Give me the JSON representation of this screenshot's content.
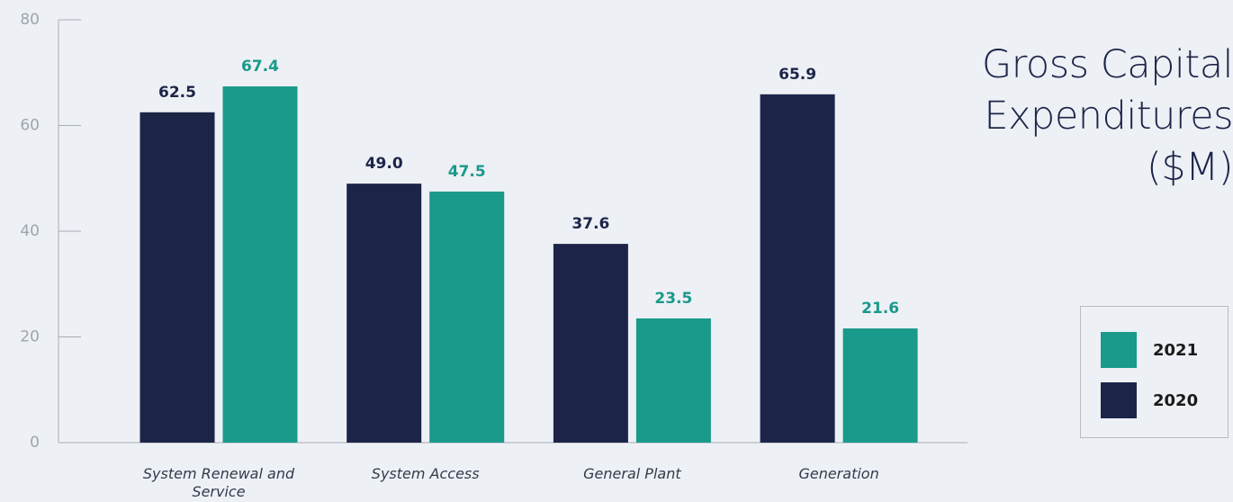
{
  "chart_data": {
    "type": "bar",
    "title": "Gross Capital Expenditures ($M)",
    "categories": [
      "System Renewal and Service",
      "System Access",
      "General Plant",
      "Generation"
    ],
    "series": [
      {
        "name": "2020",
        "color": "#1c2548",
        "values": [
          62.5,
          49.0,
          37.6,
          65.9
        ],
        "value_labels": [
          "62.5",
          "49.0",
          "37.6",
          "65.9"
        ]
      },
      {
        "name": "2021",
        "color": "#199a8a",
        "values": [
          67.4,
          47.5,
          23.5,
          21.6
        ],
        "value_labels": [
          "67.4",
          "47.5",
          "23.5",
          "21.6"
        ]
      }
    ],
    "ylim": [
      0,
      80
    ],
    "yticks": [
      0,
      20,
      40,
      60,
      80
    ],
    "grid": false,
    "legend": "right"
  }
}
